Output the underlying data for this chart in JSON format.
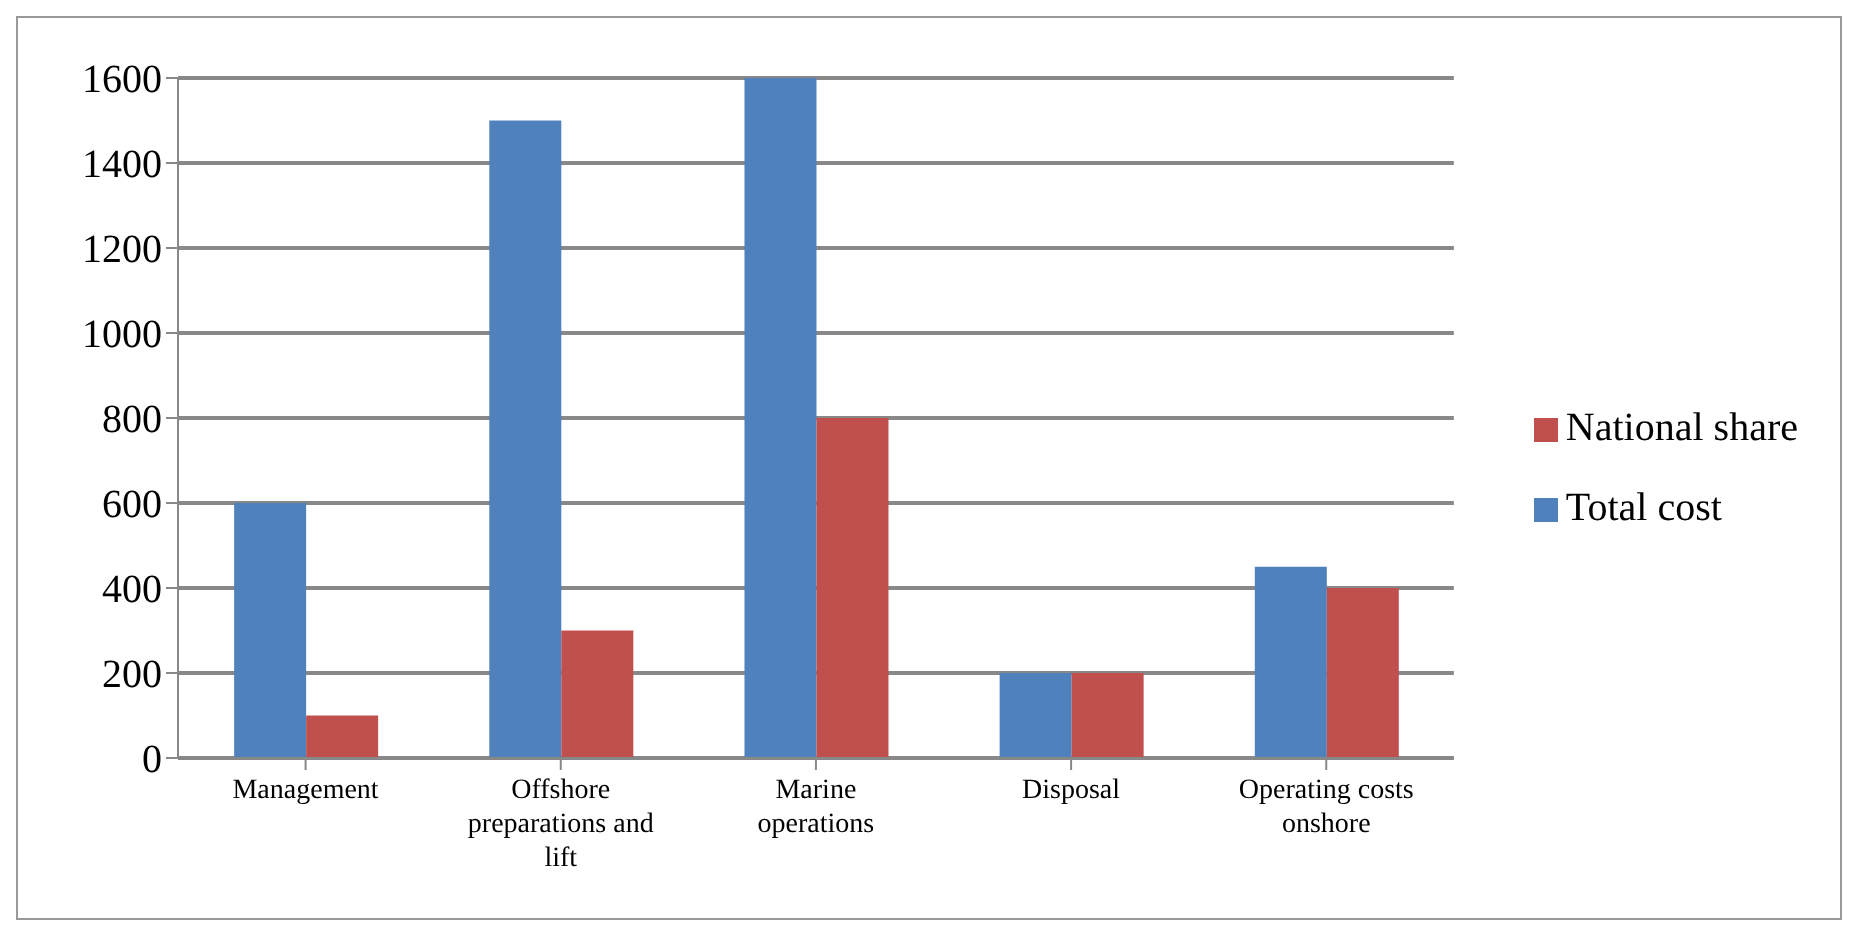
{
  "chart_data": {
    "type": "bar",
    "categories": [
      "Management",
      "Offshore preparations and lift",
      "Marine operations",
      "Disposal",
      "Operating costs onshore"
    ],
    "series": [
      {
        "name": "Total cost",
        "color": "#4f81bd",
        "values": [
          600,
          1500,
          1600,
          200,
          450
        ]
      },
      {
        "name": "National share",
        "color": "#c0504d",
        "values": [
          100,
          300,
          800,
          200,
          400
        ]
      }
    ],
    "ylim": [
      0,
      1600
    ],
    "yticks": [
      0,
      200,
      400,
      600,
      800,
      1000,
      1200,
      1400,
      1600
    ],
    "grid": "y",
    "legend": "right"
  }
}
